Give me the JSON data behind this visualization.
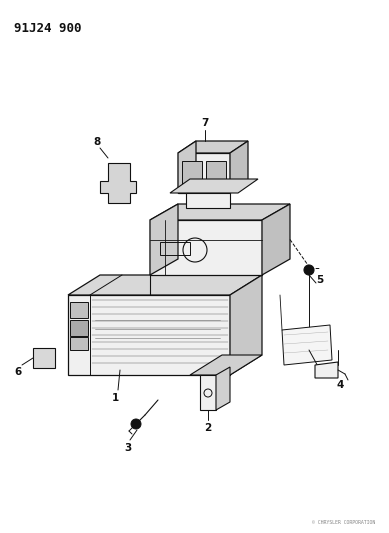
{
  "title": "91J24 900",
  "bg_color": "#ffffff",
  "line_color": "#111111",
  "gray_fill": "#e8e8e8",
  "dark_gray": "#c0c0c0",
  "light_gray": "#f0f0f0"
}
